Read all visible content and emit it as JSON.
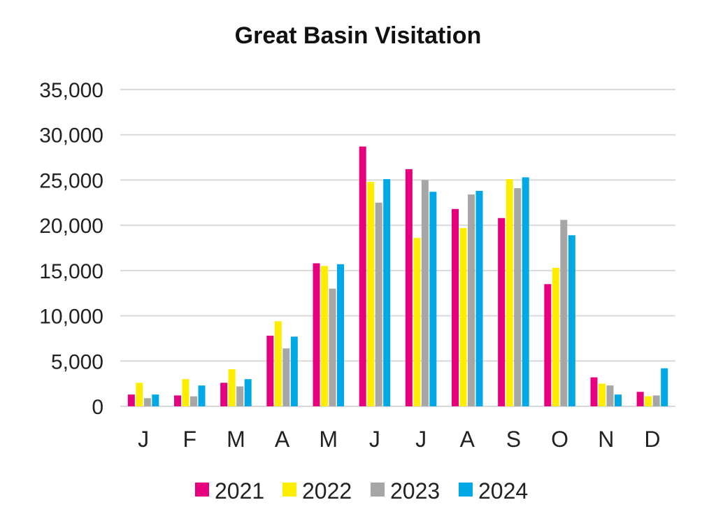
{
  "chart_data": {
    "type": "bar",
    "title": "Great Basin Visitation",
    "xlabel": "",
    "ylabel": "",
    "ylim": [
      0,
      35000
    ],
    "yticks": [
      0,
      5000,
      10000,
      15000,
      20000,
      25000,
      30000,
      35000
    ],
    "ytick_labels": [
      "0",
      "5,000",
      "10,000",
      "15,000",
      "20,000",
      "25,000",
      "30,000",
      "35,000"
    ],
    "grid": true,
    "legend_position": "bottom",
    "categories": [
      "J",
      "F",
      "M",
      "A",
      "M",
      "J",
      "J",
      "A",
      "S",
      "O",
      "N",
      "D"
    ],
    "series": [
      {
        "name": "2021",
        "color": "#e6007e",
        "values": [
          1300,
          1200,
          2600,
          7800,
          15800,
          28700,
          26200,
          21800,
          20800,
          13500,
          3200,
          1600
        ]
      },
      {
        "name": "2022",
        "color": "#ffed00",
        "values": [
          2600,
          3000,
          4100,
          9400,
          15500,
          24800,
          18600,
          19700,
          25100,
          15300,
          2500,
          1100
        ]
      },
      {
        "name": "2023",
        "color": "#a6a6a6",
        "values": [
          900,
          1100,
          2200,
          6400,
          13000,
          22500,
          25000,
          23400,
          24100,
          20600,
          2300,
          1200
        ]
      },
      {
        "name": "2024",
        "color": "#00a9e6",
        "values": [
          1300,
          2300,
          3000,
          7700,
          15700,
          25100,
          23700,
          23800,
          25300,
          18900,
          1300,
          4200
        ]
      }
    ]
  }
}
